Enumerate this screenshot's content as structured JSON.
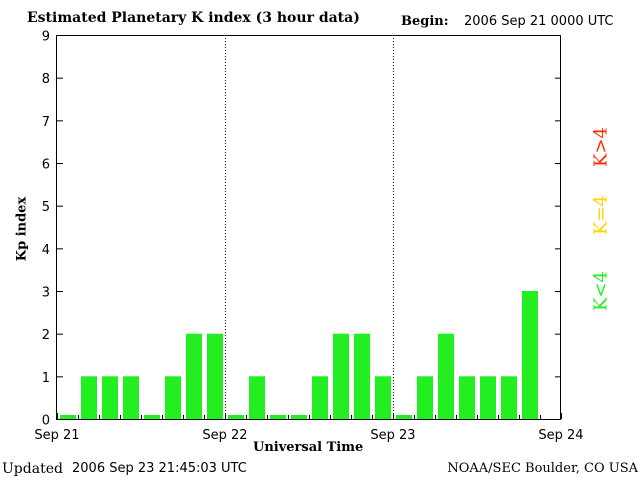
{
  "header": {
    "title": "Estimated Planetary K index (3 hour data)",
    "begin_label": "Begin:",
    "begin_value": "2006 Sep 21 0000 UTC"
  },
  "footer": {
    "updated_label": "Updated",
    "updated_value": "2006 Sep 23 21:45:03 UTC",
    "credit": "NOAA/SEC Boulder, CO USA"
  },
  "legend": {
    "items": [
      {
        "label": "K>4",
        "color": "#ff2a00"
      },
      {
        "label": "K=4",
        "color": "#ffd200"
      },
      {
        "label": "K<4",
        "color": "#22ee22"
      }
    ]
  },
  "chart_data": {
    "type": "bar",
    "xlabel": "Universal Time",
    "ylabel": "Kp index",
    "ylim": [
      0,
      9
    ],
    "yticks": [
      0,
      1,
      2,
      3,
      4,
      5,
      6,
      7,
      8,
      9
    ],
    "xticks": [
      "Sep 21",
      "Sep 22",
      "Sep 23",
      "Sep 24"
    ],
    "day_dividers": [
      "Sep 22",
      "Sep 23"
    ],
    "bars_per_day": 8,
    "values": [
      0,
      1,
      1,
      1,
      0,
      1,
      2,
      2,
      0,
      1,
      0,
      0,
      1,
      2,
      2,
      1,
      0,
      1,
      2,
      1,
      1,
      1,
      3
    ],
    "bar_color": "#22ee22",
    "grid": false
  }
}
